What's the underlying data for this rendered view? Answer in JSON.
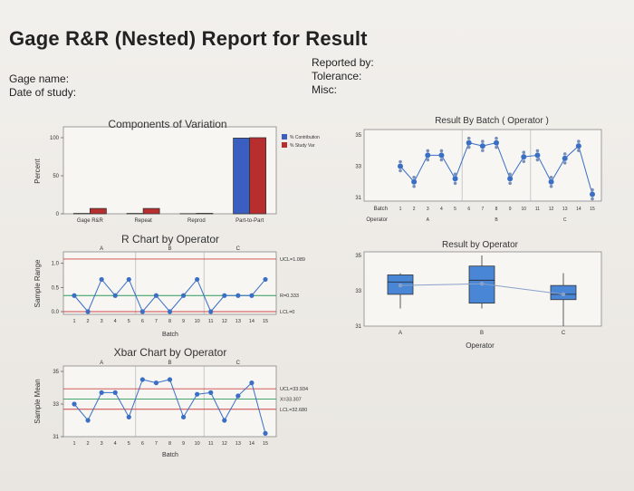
{
  "report": {
    "title": "Gage R&R (Nested) Report for Result",
    "gage_name_label": "Gage name:",
    "date_label": "Date of study:",
    "reported_by_label": "Reported by:",
    "tolerance_label": "Tolerance:",
    "misc_label": "Misc:"
  },
  "chart_data": [
    {
      "id": "components",
      "type": "bar",
      "title": "Components of Variation",
      "ylabel": "Percent",
      "categories": [
        "Gage R&R",
        "Repeat",
        "Reprod",
        "Part-to-Part"
      ],
      "series": [
        {
          "name": "% Contribution",
          "values": [
            0.5,
            0.5,
            0.2,
            99.5
          ],
          "color": "#3b5fc0"
        },
        {
          "name": "% Study Var",
          "values": [
            7,
            7,
            0.6,
            100
          ],
          "color": "#b82e2e"
        }
      ],
      "yticks": [
        0,
        50,
        100
      ],
      "ylim": [
        0,
        100
      ],
      "legend": "top-right"
    },
    {
      "id": "rchart",
      "type": "line",
      "title": "R Chart by Operator",
      "ylabel": "Sample Range",
      "xlabel": "Batch",
      "operators": [
        "A",
        "B",
        "C"
      ],
      "xticks": [
        "1",
        "2",
        "3",
        "4",
        "5",
        "6",
        "7",
        "8",
        "9",
        "10",
        "11",
        "12",
        "13",
        "14",
        "15"
      ],
      "yticks": [
        "0.0",
        "0.5",
        "1.0"
      ],
      "ylim": [
        0,
        1.2
      ],
      "values": [
        0.333,
        0.0,
        0.667,
        0.333,
        0.667,
        0.0,
        0.333,
        0.0,
        0.333,
        0.667,
        0.0,
        0.333,
        0.333,
        0.333,
        0.667
      ],
      "limits": [
        {
          "label": "UCL=1.089",
          "value": 1.089
        },
        {
          "label": "R=0.333",
          "value": 0.333
        },
        {
          "label": "LCL=0",
          "value": 0
        }
      ]
    },
    {
      "id": "xbar",
      "type": "line",
      "title": "Xbar Chart by Operator",
      "ylabel": "Sample Mean",
      "xlabel": "Batch",
      "operators": [
        "A",
        "B",
        "C"
      ],
      "xticks": [
        "1",
        "2",
        "3",
        "4",
        "5",
        "6",
        "7",
        "8",
        "9",
        "10",
        "11",
        "12",
        "13",
        "14",
        "15"
      ],
      "yticks": [
        "31",
        "33",
        "35"
      ],
      "ylim": [
        31,
        35
      ],
      "values": [
        33.0,
        32.0,
        33.7,
        33.7,
        32.2,
        34.5,
        34.3,
        34.5,
        32.2,
        33.6,
        33.7,
        32.0,
        33.5,
        34.3,
        31.2
      ],
      "limits": [
        {
          "label": "UCL=33.934",
          "value": 33.934
        },
        {
          "label": "X=33.307",
          "value": 33.307
        },
        {
          "label": "LCL=32.680",
          "value": 32.68
        }
      ]
    },
    {
      "id": "bybatch",
      "type": "scatter",
      "title": "Result By Batch ( Operator )",
      "row_labels": [
        "Batch",
        "Operator"
      ],
      "operators": [
        "A",
        "B",
        "C"
      ],
      "xticks": [
        "1",
        "2",
        "3",
        "4",
        "5",
        "6",
        "7",
        "8",
        "9",
        "10",
        "11",
        "12",
        "13",
        "14",
        "15"
      ],
      "yticks": [
        "31",
        "33",
        "35"
      ],
      "ylim": [
        31,
        35
      ],
      "means": [
        33.0,
        32.0,
        33.7,
        33.7,
        32.2,
        34.5,
        34.3,
        34.5,
        32.2,
        33.6,
        33.7,
        32.0,
        33.5,
        34.3,
        31.2
      ]
    },
    {
      "id": "byoperator",
      "type": "box",
      "title": "Result by Operator",
      "xlabel": "Operator",
      "categories": [
        "A",
        "B",
        "C"
      ],
      "yticks": [
        "31",
        "33",
        "35"
      ],
      "ylim": [
        31,
        35
      ],
      "boxes": [
        {
          "min": 32.0,
          "q1": 32.8,
          "median": 33.5,
          "q3": 33.9,
          "max": 34.0
        },
        {
          "min": 32.0,
          "q1": 32.3,
          "median": 33.6,
          "q3": 34.4,
          "max": 35.0
        },
        {
          "min": 31.0,
          "q1": 32.5,
          "median": 32.8,
          "q3": 33.3,
          "max": 34.0
        }
      ],
      "means": [
        33.3,
        33.4,
        32.8
      ]
    }
  ]
}
